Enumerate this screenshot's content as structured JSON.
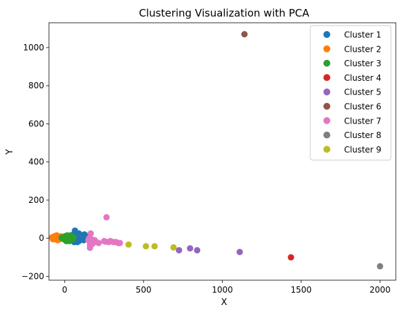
{
  "chart_data": {
    "type": "scatter",
    "title": "Clustering Visualization with PCA",
    "xlabel": "X",
    "ylabel": "Y",
    "xlim": [
      -100,
      2100
    ],
    "ylim": [
      -220,
      1130
    ],
    "xticks": [
      0,
      500,
      1000,
      1500,
      2000
    ],
    "yticks": [
      -200,
      0,
      200,
      400,
      600,
      800,
      1000
    ],
    "legend_position": "upper-right",
    "grid": false,
    "series": [
      {
        "name": "Cluster 1",
        "color": "#1f77b4",
        "points": [
          [
            55,
            20
          ],
          [
            60,
            0
          ],
          [
            70,
            5
          ],
          [
            75,
            -10
          ],
          [
            80,
            10
          ],
          [
            85,
            -5
          ],
          [
            90,
            25
          ],
          [
            95,
            0
          ],
          [
            100,
            15
          ],
          [
            105,
            -5
          ],
          [
            110,
            10
          ],
          [
            115,
            5
          ],
          [
            120,
            -10
          ],
          [
            125,
            20
          ],
          [
            130,
            0
          ],
          [
            60,
            -20
          ],
          [
            70,
            30
          ],
          [
            90,
            -15
          ],
          [
            100,
            5
          ],
          [
            135,
            10
          ],
          [
            140,
            -5
          ],
          [
            145,
            0
          ],
          [
            80,
            -20
          ],
          [
            65,
            40
          ]
        ]
      },
      {
        "name": "Cluster 2",
        "color": "#ff7f0e",
        "points": [
          [
            -80,
            5
          ],
          [
            -70,
            0
          ],
          [
            -65,
            10
          ],
          [
            -60,
            -5
          ],
          [
            -55,
            5
          ],
          [
            -50,
            15
          ],
          [
            -45,
            -10
          ],
          [
            -40,
            0
          ],
          [
            -35,
            5
          ],
          [
            -30,
            -5
          ],
          [
            -25,
            10
          ],
          [
            -75,
            -5
          ],
          [
            -60,
            12
          ]
        ]
      },
      {
        "name": "Cluster 3",
        "color": "#2ca02c",
        "points": [
          [
            -10,
            5
          ],
          [
            -5,
            0
          ],
          [
            0,
            10
          ],
          [
            5,
            -5
          ],
          [
            10,
            5
          ],
          [
            15,
            15
          ],
          [
            20,
            -10
          ],
          [
            25,
            0
          ],
          [
            30,
            5
          ],
          [
            35,
            -5
          ],
          [
            40,
            10
          ],
          [
            45,
            0
          ],
          [
            -20,
            2
          ],
          [
            0,
            -8
          ],
          [
            20,
            12
          ],
          [
            35,
            15
          ],
          [
            50,
            -5
          ],
          [
            10,
            -15
          ],
          [
            30,
            -15
          ],
          [
            55,
            5
          ]
        ]
      },
      {
        "name": "Cluster 4",
        "color": "#d62728",
        "points": [
          [
            1435,
            -100
          ]
        ]
      },
      {
        "name": "Cluster 5",
        "color": "#9467bd",
        "points": [
          [
            725,
            -63
          ],
          [
            795,
            -53
          ],
          [
            840,
            -63
          ],
          [
            1110,
            -72
          ]
        ]
      },
      {
        "name": "Cluster 6",
        "color": "#8c564b",
        "points": [
          [
            1140,
            1070
          ]
        ]
      },
      {
        "name": "Cluster 7",
        "color": "#e377c2",
        "points": [
          [
            150,
            -10
          ],
          [
            155,
            0
          ],
          [
            160,
            -50
          ],
          [
            165,
            25
          ],
          [
            170,
            -5
          ],
          [
            180,
            -15
          ],
          [
            190,
            -10
          ],
          [
            200,
            -20
          ],
          [
            215,
            -25
          ],
          [
            250,
            -15
          ],
          [
            260,
            -18
          ],
          [
            265,
            110
          ],
          [
            280,
            -20
          ],
          [
            290,
            -15
          ],
          [
            310,
            -20
          ],
          [
            325,
            -20
          ],
          [
            340,
            -25
          ],
          [
            350,
            -25
          ],
          [
            175,
            -30
          ],
          [
            160,
            -35
          ]
        ]
      },
      {
        "name": "Cluster 8",
        "color": "#7f7f7f",
        "points": [
          [
            2000,
            -147
          ]
        ]
      },
      {
        "name": "Cluster 9",
        "color": "#bcbd22",
        "points": [
          [
            405,
            -33
          ],
          [
            515,
            -42
          ],
          [
            570,
            -42
          ],
          [
            690,
            -48
          ]
        ]
      }
    ]
  }
}
